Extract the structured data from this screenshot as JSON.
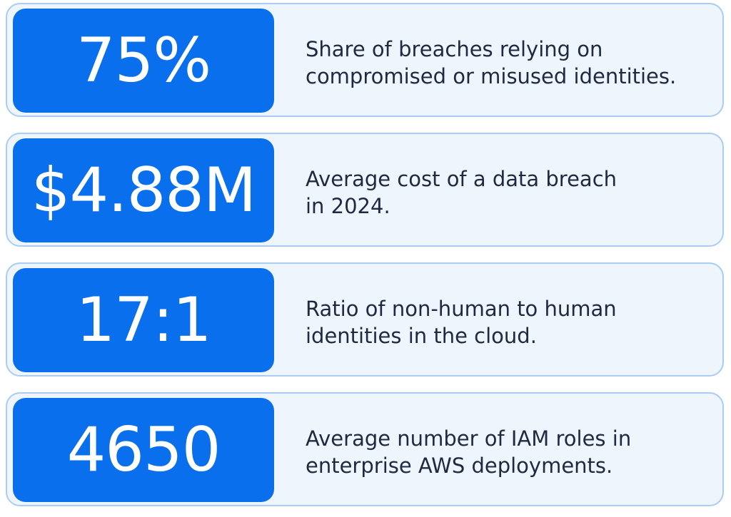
{
  "stats": [
    {
      "value": "75%",
      "description": [
        "Share of breaches relying on",
        "compromised or misused identities."
      ]
    },
    {
      "value": "$4.88M",
      "description": [
        "Average cost of a data breach",
        "in 2024."
      ]
    },
    {
      "value": "17:1",
      "description": [
        "Ratio of non-human to human",
        "identities in the cloud."
      ]
    },
    {
      "value": "4650",
      "description": [
        "Average number of IAM roles in",
        "enterprise AWS deployments."
      ]
    }
  ],
  "colors": {
    "accent": "#0a6fed",
    "card_background": "#eef5fd",
    "card_border": "#a9cdf3",
    "text": "#1f2940"
  }
}
